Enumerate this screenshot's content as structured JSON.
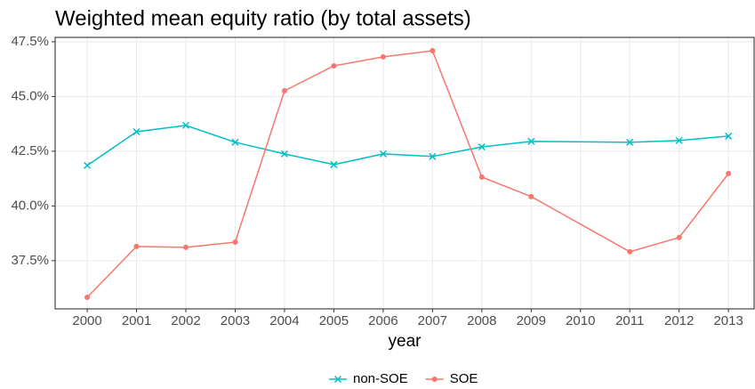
{
  "chart_data": {
    "type": "line",
    "title": "Weighted mean equity ratio (by total assets)",
    "x_label": "year",
    "x": [
      2000,
      2001,
      2002,
      2003,
      2004,
      2005,
      2006,
      2007,
      2008,
      2009,
      2011,
      2012,
      2013
    ],
    "series": [
      {
        "name": "non-SOE",
        "color": "#00BFC4",
        "marker": "x",
        "values": [
          41.85,
          43.39,
          43.68,
          42.91,
          42.38,
          41.89,
          42.38,
          42.26,
          42.7,
          42.95,
          42.91,
          42.99,
          43.19
        ]
      },
      {
        "name": "SOE",
        "color": "#F8766D",
        "marker": "circle",
        "values": [
          35.83,
          38.15,
          38.11,
          38.35,
          45.26,
          46.4,
          46.81,
          47.09,
          41.32,
          40.43,
          37.91,
          38.56,
          41.48
        ]
      }
    ],
    "xlim": [
      1999.35,
      2013.52
    ],
    "xticks": [
      2000,
      2001,
      2002,
      2003,
      2004,
      2005,
      2006,
      2007,
      2008,
      2009,
      2010,
      2011,
      2012,
      2013
    ],
    "ylim": [
      35.3,
      47.7
    ],
    "yticks": [
      {
        "value": 37.5,
        "label": "37.5%"
      },
      {
        "value": 40,
        "label": "40.0%"
      },
      {
        "value": 42.5,
        "label": "42.5%"
      },
      {
        "value": 45,
        "label": "45.0%"
      },
      {
        "value": 47.5,
        "label": "47.5%"
      }
    ],
    "grid": true,
    "legend": "bottom"
  }
}
